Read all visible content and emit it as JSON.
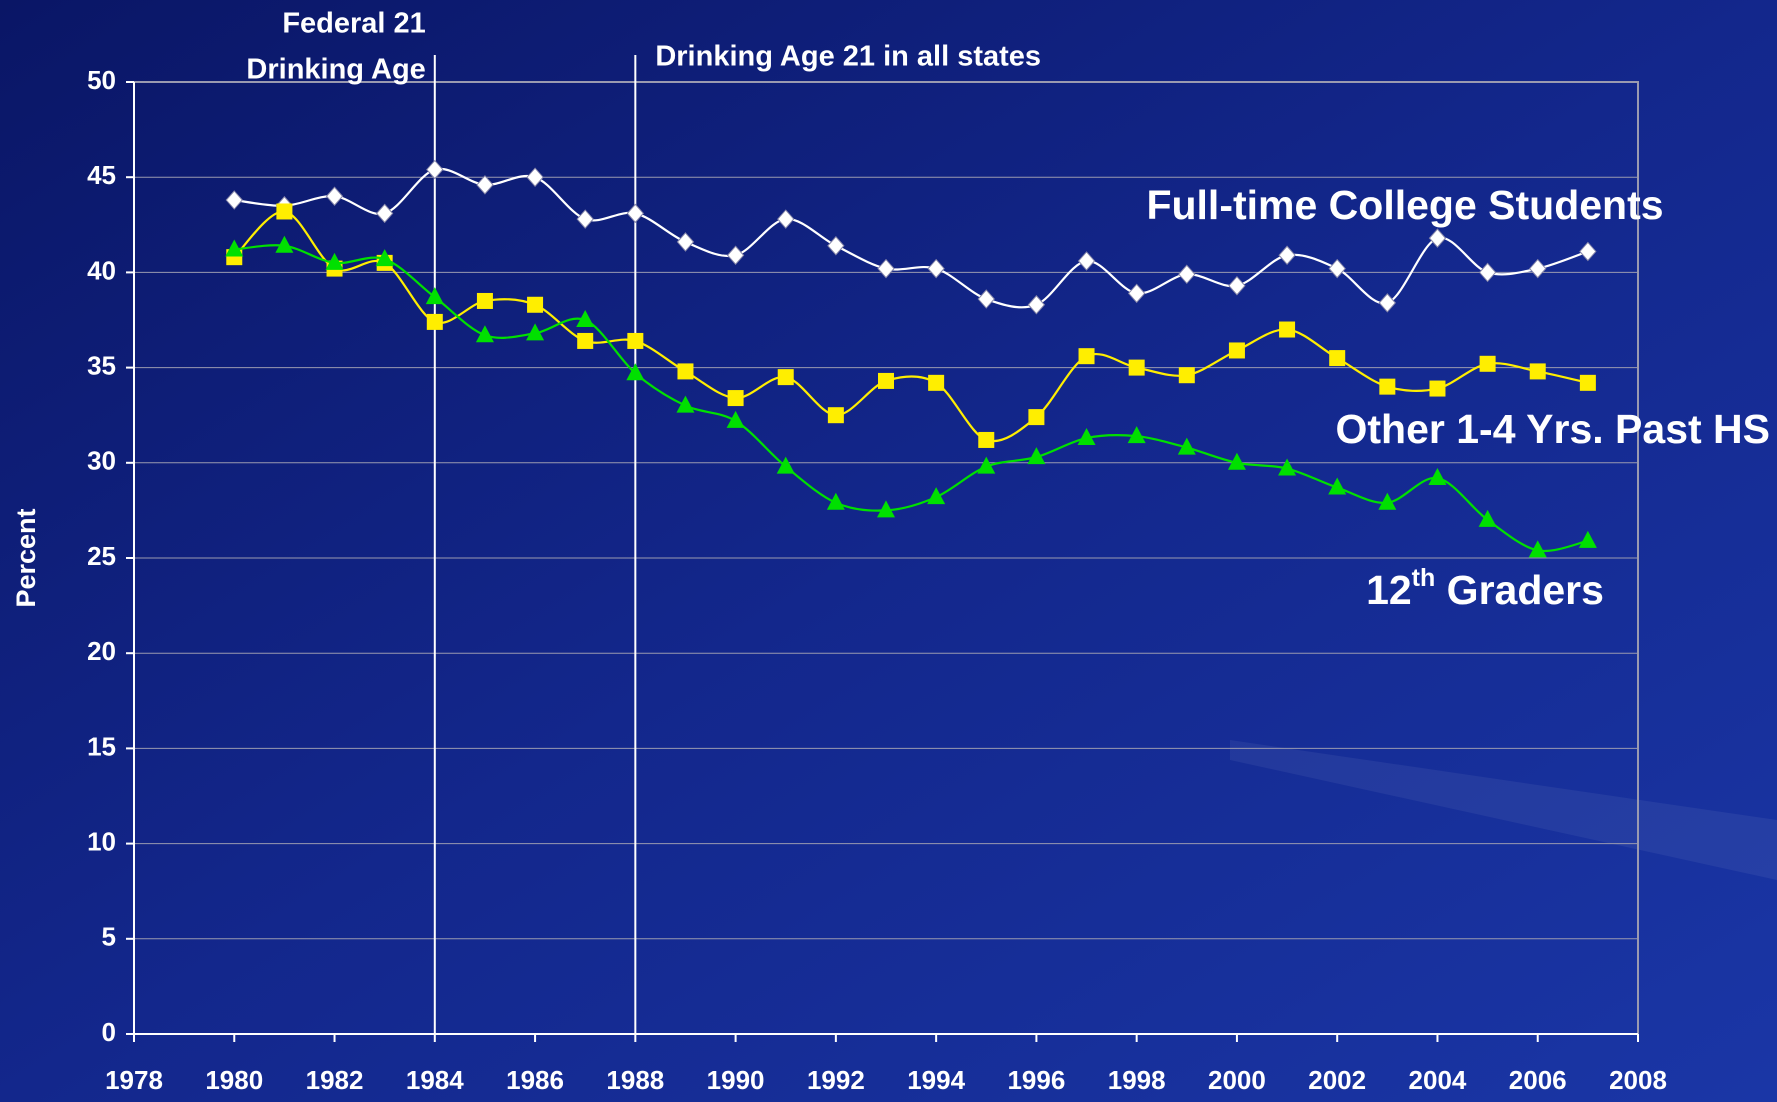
{
  "chart_data": {
    "type": "line",
    "y_label": "Percent",
    "x": [
      1980,
      1981,
      1982,
      1983,
      1984,
      1985,
      1986,
      1987,
      1988,
      1989,
      1990,
      1991,
      1992,
      1993,
      1994,
      1995,
      1996,
      1997,
      1998,
      1999,
      2000,
      2001,
      2002,
      2003,
      2004,
      2005,
      2006,
      2007
    ],
    "series": [
      {
        "name": "Full-time College Students",
        "color": "#ffffff",
        "marker": "diamond",
        "values": [
          43.8,
          43.5,
          44.0,
          43.1,
          45.4,
          44.6,
          45.0,
          42.8,
          43.1,
          41.6,
          40.9,
          42.8,
          41.4,
          40.2,
          40.2,
          38.6,
          38.3,
          40.6,
          38.9,
          39.9,
          39.3,
          40.9,
          40.2,
          38.4,
          41.8,
          40.0,
          40.2,
          41.1
        ]
      },
      {
        "name": "Other 1-4 Yrs. Past HS",
        "color": "#ffee00",
        "marker": "square",
        "values": [
          40.8,
          43.2,
          40.2,
          40.5,
          37.4,
          38.5,
          38.3,
          36.4,
          36.4,
          34.8,
          33.4,
          34.5,
          32.5,
          34.3,
          34.2,
          31.2,
          32.4,
          35.6,
          35.0,
          34.6,
          35.9,
          37.0,
          35.5,
          34.0,
          33.9,
          35.2,
          34.8,
          34.2
        ]
      },
      {
        "name": "12th Graders",
        "color": "#00e000",
        "marker": "triangle",
        "values": [
          41.2,
          41.4,
          40.5,
          40.7,
          38.7,
          36.7,
          36.8,
          37.5,
          34.7,
          33.0,
          32.2,
          29.8,
          27.9,
          27.5,
          28.2,
          29.8,
          30.3,
          31.3,
          31.4,
          30.8,
          30.0,
          29.7,
          28.7,
          27.9,
          29.2,
          27.0,
          25.4,
          25.9
        ]
      }
    ],
    "annotations": [
      {
        "lines": [
          "Federal 21",
          "Drinking Age"
        ],
        "x": 1984
      },
      {
        "lines": [
          "Drinking Age 21 in all states"
        ],
        "x": 1988
      }
    ],
    "xlim": [
      1978,
      2008
    ],
    "xticks": [
      1978,
      1980,
      1982,
      1984,
      1986,
      1988,
      1990,
      1992,
      1994,
      1996,
      1998,
      2000,
      2002,
      2004,
      2006,
      2008
    ],
    "ylim": [
      0,
      50
    ],
    "yticks": [
      0,
      5,
      10,
      15,
      20,
      25,
      30,
      35,
      40,
      45,
      50
    ],
    "grid": true
  }
}
